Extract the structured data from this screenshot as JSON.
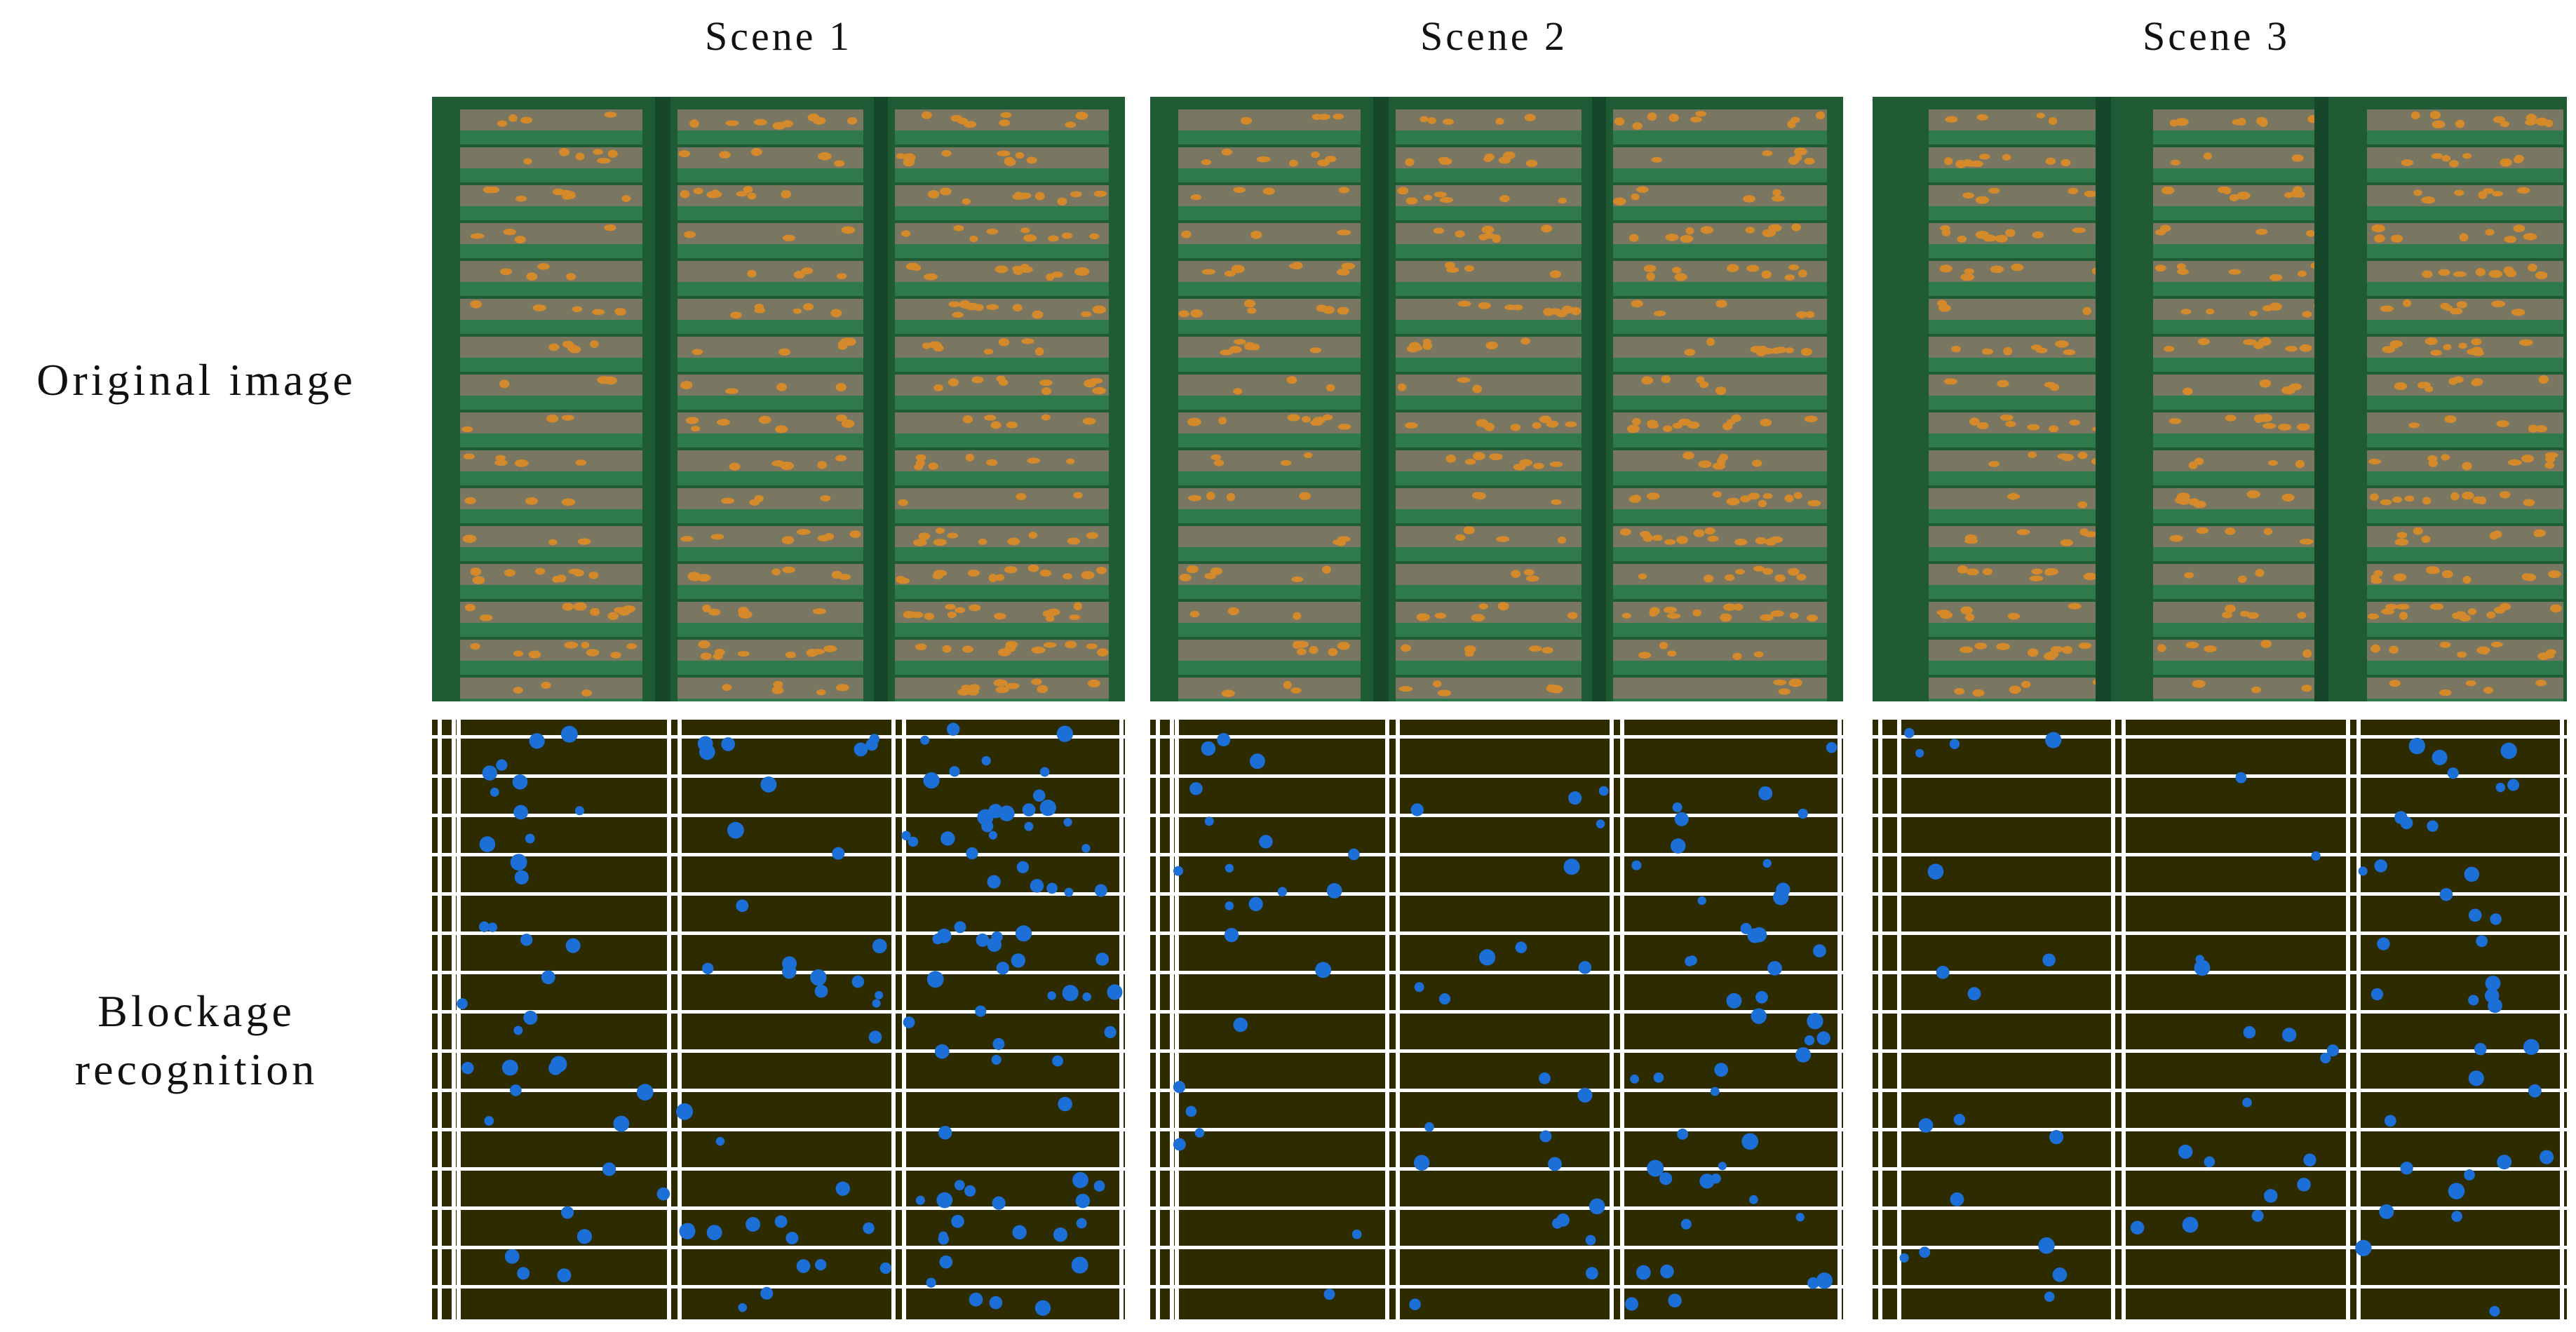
{
  "figure": {
    "columns": [
      {
        "label": "Scene 1"
      },
      {
        "label": "Scene 2"
      },
      {
        "label": "Scene 3"
      }
    ],
    "rows": [
      {
        "label": "Original image"
      },
      {
        "label_line1": "Blockage",
        "label_line2": "recognition"
      }
    ]
  },
  "colors": {
    "panel_green": "#1f5c36",
    "slat_light": "#2e7a4a",
    "slot_soil": "#8a7a68",
    "grain": "#d48a2a",
    "mask_background": "#2f2b00",
    "mask_grid": "#ffffff",
    "blockage_blob": "#1c6fd6"
  }
}
